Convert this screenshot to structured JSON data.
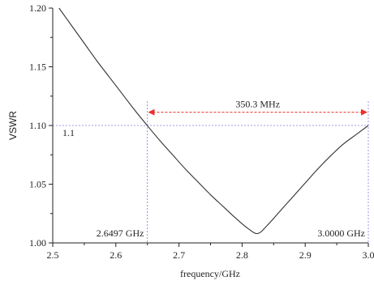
{
  "chart_data": {
    "type": "line",
    "title": "",
    "xlabel": "frequency/GHz",
    "ylabel": "VSWR",
    "xlim": [
      2.5,
      3.0
    ],
    "ylim": [
      1.0,
      1.2
    ],
    "x_ticks": [
      2.5,
      2.6,
      2.7,
      2.8,
      2.9,
      3.0
    ],
    "x_tick_labels": [
      "2.5",
      "2.6",
      "2.7",
      "2.8",
      "2.9",
      "3.0"
    ],
    "y_ticks": [
      1.0,
      1.05,
      1.1,
      1.15,
      1.2
    ],
    "y_tick_labels": [
      "1.00",
      "1.05",
      "1.10",
      "1.15",
      "1.20"
    ],
    "grid": false,
    "series": [
      {
        "color": "#333333",
        "x": [
          2.51,
          2.53,
          2.55,
          2.57,
          2.59,
          2.61,
          2.63,
          2.6497,
          2.67,
          2.69,
          2.71,
          2.73,
          2.75,
          2.77,
          2.79,
          2.81,
          2.825,
          2.84,
          2.86,
          2.88,
          2.9,
          2.92,
          2.94,
          2.96,
          2.98,
          3.0
        ],
        "y": [
          1.2,
          1.185,
          1.17,
          1.155,
          1.141,
          1.127,
          1.113,
          1.1,
          1.087,
          1.075,
          1.063,
          1.052,
          1.041,
          1.031,
          1.021,
          1.012,
          1.008,
          1.015,
          1.027,
          1.039,
          1.051,
          1.063,
          1.074,
          1.084,
          1.092,
          1.1
        ]
      }
    ],
    "reference_line": {
      "y": 1.1,
      "label": "1.1",
      "color": "#7f7fe0"
    },
    "markers": [
      {
        "x": 2.6497,
        "label": "2.6497 GHz",
        "color": "#7f7fe0"
      },
      {
        "x": 3.0,
        "label": "3.0000 GHz",
        "color": "#7f7fe0"
      }
    ],
    "bandwidth": {
      "label": "350.3 MHz",
      "x_start": 2.6497,
      "x_end": 3.0,
      "y": 1.112,
      "color": "#e8312f"
    }
  }
}
